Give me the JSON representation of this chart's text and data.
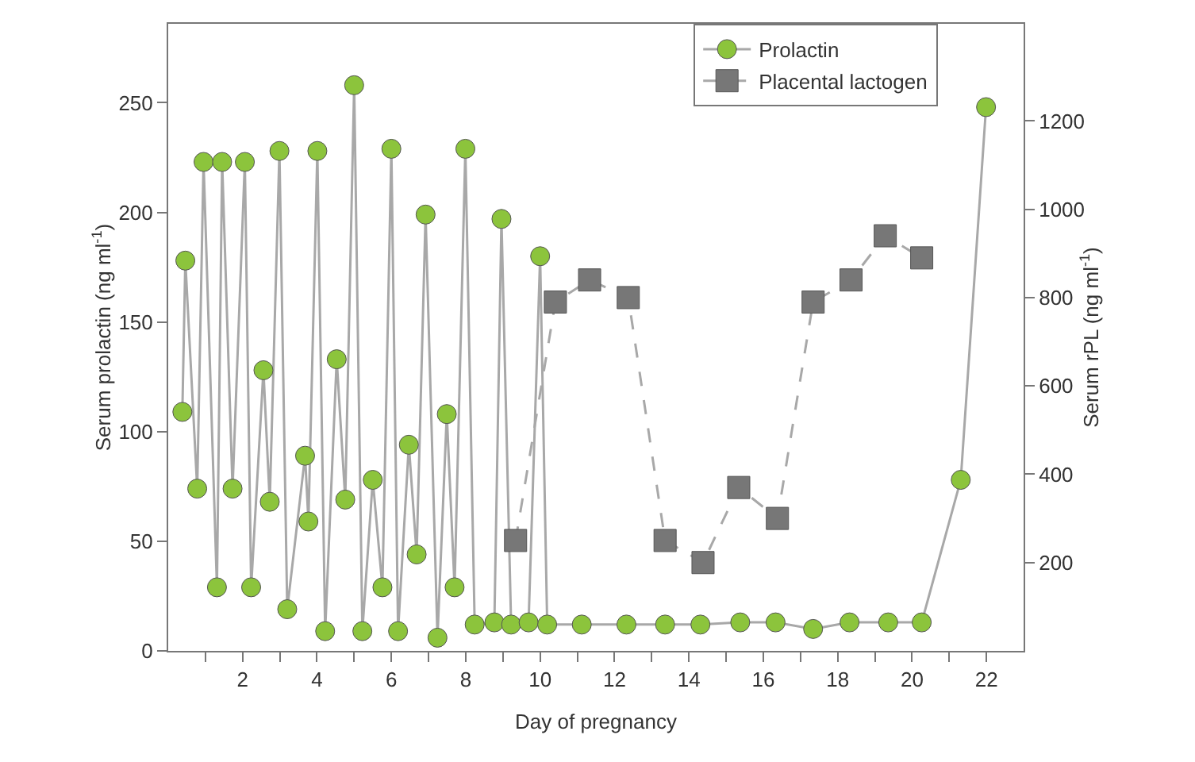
{
  "chart_data": {
    "type": "line",
    "xlabel": "Day of pregnancy",
    "ylabel": "Serum prolactin (ng ml$^{-1}$)",
    "y2label": "Serum rPL (ng ml$^{-1}$)",
    "xlim": [
      0,
      23
    ],
    "xticks": [
      {
        "value": 1,
        "label": null
      },
      2,
      {
        "value": 3,
        "label": null
      },
      4,
      {
        "value": 5,
        "label": null
      },
      6,
      {
        "value": 7,
        "label": null
      },
      8,
      {
        "value": 9,
        "label": null
      },
      10,
      {
        "value": 11,
        "label": null
      },
      12,
      {
        "value": 13,
        "label": null
      },
      14,
      {
        "value": 15,
        "label": null
      },
      16,
      {
        "value": 17,
        "label": null
      },
      18,
      {
        "value": 19,
        "label": null
      },
      20,
      {
        "value": 21,
        "label": null
      },
      22
    ],
    "ylim": [
      0,
      286
    ],
    "yticks": [
      0,
      50,
      100,
      150,
      200,
      250
    ],
    "y2lim": [
      0,
      1420
    ],
    "y2ticks": [
      200,
      400,
      600,
      800,
      1000,
      1200
    ],
    "grid": false,
    "legend": "top right",
    "series": [
      {
        "name": "Prolactin",
        "color": "#8cc43c",
        "marker": "circle",
        "line_style": "solid",
        "x": [
          0.38,
          0.46,
          0.78,
          0.95,
          1.31,
          1.45,
          1.73,
          2.06,
          2.23,
          2.56,
          2.73,
          2.99,
          3.2,
          3.68,
          3.77,
          4.01,
          4.22,
          4.53,
          4.76,
          5.0,
          5.22,
          5.5,
          5.76,
          6.0,
          6.18,
          6.47,
          6.68,
          6.92,
          7.24,
          7.49,
          7.7,
          7.99,
          8.24,
          8.77,
          8.96,
          9.22,
          9.69,
          10.0,
          10.19,
          11.12,
          12.32,
          13.36,
          14.31,
          15.38,
          16.33,
          17.34,
          18.32,
          19.36,
          20.26,
          21.31,
          21.99
        ],
        "values": [
          109,
          178,
          74,
          223,
          29,
          223,
          74,
          223,
          29,
          128,
          68,
          228,
          19,
          89,
          59,
          228,
          9,
          133,
          69,
          258,
          9,
          78,
          29,
          229,
          9,
          94,
          44,
          199,
          6,
          108,
          29,
          229,
          12,
          13,
          197,
          12,
          13,
          180,
          12,
          12,
          12,
          12,
          12,
          13,
          13,
          10,
          13,
          13,
          13,
          78,
          248
        ]
      },
      {
        "name": "Placental lactogen",
        "color": "#777777",
        "marker": "square",
        "line_style": "dashed",
        "axis": "y2",
        "x": [
          9.34,
          10.41,
          11.33,
          12.37,
          13.36,
          14.38,
          15.34,
          16.38,
          17.34,
          18.36,
          19.28,
          20.26
        ],
        "values": [
          250,
          790,
          840,
          800,
          250,
          200,
          370,
          300,
          790,
          840,
          940,
          890
        ]
      }
    ]
  }
}
